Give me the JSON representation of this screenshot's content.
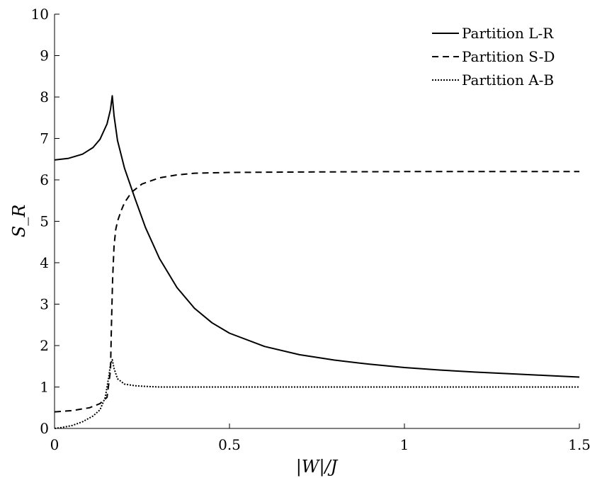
{
  "chart_data": {
    "type": "line",
    "title": "",
    "xlabel": "|W|/J",
    "ylabel": "S_R",
    "xlim": [
      0,
      1.5
    ],
    "ylim": [
      0,
      10
    ],
    "xticks": [
      0,
      0.5,
      1,
      1.5
    ],
    "xtick_labels": [
      "0",
      "0.5",
      "1",
      "1.5"
    ],
    "yticks": [
      0,
      1,
      2,
      3,
      4,
      5,
      6,
      7,
      8,
      9,
      10
    ],
    "ytick_labels": [
      "0",
      "1",
      "2",
      "3",
      "4",
      "5",
      "6",
      "7",
      "8",
      "9",
      "10"
    ],
    "grid": false,
    "legend_position": "top-right",
    "series": [
      {
        "name": "Partition L-R",
        "style": "solid",
        "x": [
          0,
          0.04,
          0.08,
          0.11,
          0.13,
          0.15,
          0.16,
          0.165,
          0.17,
          0.18,
          0.2,
          0.23,
          0.26,
          0.3,
          0.35,
          0.4,
          0.45,
          0.5,
          0.6,
          0.7,
          0.8,
          0.9,
          1.0,
          1.1,
          1.2,
          1.3,
          1.4,
          1.5
        ],
        "y": [
          6.48,
          6.52,
          6.62,
          6.78,
          6.98,
          7.35,
          7.7,
          8.03,
          7.55,
          6.95,
          6.28,
          5.55,
          4.85,
          4.1,
          3.4,
          2.9,
          2.55,
          2.3,
          1.98,
          1.78,
          1.65,
          1.55,
          1.47,
          1.41,
          1.36,
          1.32,
          1.28,
          1.24
        ]
      },
      {
        "name": "Partition S-D",
        "style": "dashed",
        "x": [
          0,
          0.05,
          0.1,
          0.13,
          0.15,
          0.16,
          0.163,
          0.166,
          0.17,
          0.175,
          0.18,
          0.19,
          0.2,
          0.22,
          0.25,
          0.3,
          0.35,
          0.4,
          0.5,
          0.7,
          1.0,
          1.5
        ],
        "y": [
          0.4,
          0.43,
          0.5,
          0.6,
          0.75,
          1.4,
          2.6,
          3.6,
          4.4,
          4.8,
          5.0,
          5.25,
          5.45,
          5.7,
          5.9,
          6.05,
          6.12,
          6.16,
          6.18,
          6.19,
          6.2,
          6.2
        ]
      },
      {
        "name": "Partition A-B",
        "style": "dotted",
        "x": [
          0,
          0.02,
          0.05,
          0.08,
          0.11,
          0.13,
          0.145,
          0.155,
          0.16,
          0.165,
          0.17,
          0.18,
          0.2,
          0.23,
          0.27,
          0.3,
          0.4,
          0.6,
          1.0,
          1.5
        ],
        "y": [
          0,
          0.02,
          0.07,
          0.16,
          0.3,
          0.45,
          0.75,
          1.25,
          1.55,
          1.66,
          1.45,
          1.2,
          1.07,
          1.03,
          1.01,
          1.0,
          1.0,
          1.0,
          1.0,
          1.0
        ]
      }
    ]
  }
}
